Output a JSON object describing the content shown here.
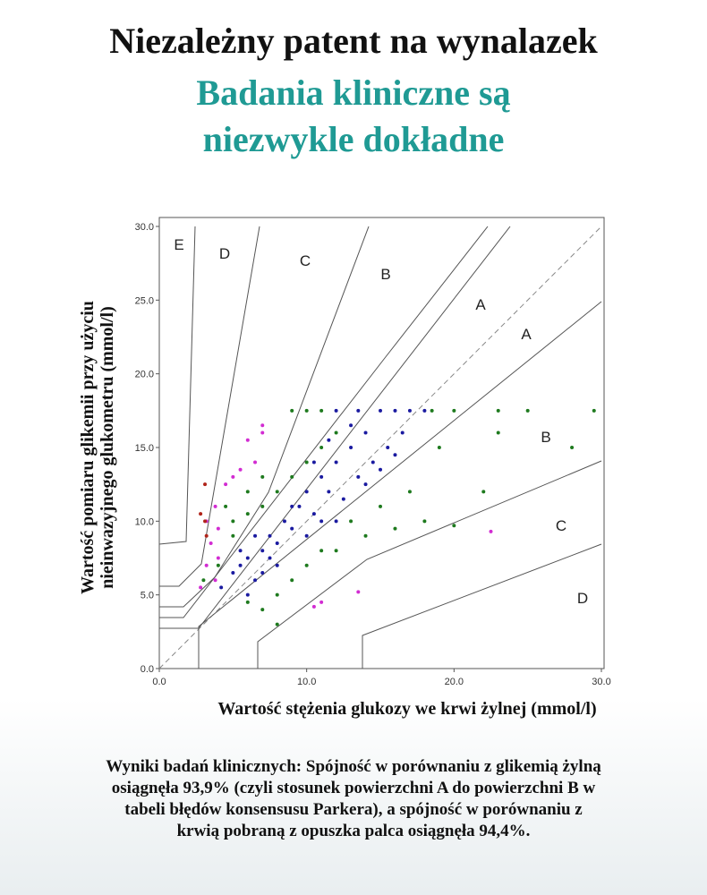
{
  "title": "Niezależny patent na wynalazek",
  "subtitle": "Badania kliniczne są niezwykle dokładne",
  "chart_data": {
    "type": "scatter",
    "x_label": "Wartość stężenia glukozy we krwi żylnej (mmol/l)",
    "y_label": [
      "Wartość pomiaru glikemii przy użyciu",
      "nieinwazyjnego glukometru (mmol/l)"
    ],
    "xlim": [
      0,
      30
    ],
    "ylim": [
      0,
      30
    ],
    "xticks": [
      {
        "value": 0,
        "label": "0.0"
      },
      {
        "value": 10,
        "label": "10.0"
      },
      {
        "value": 20,
        "label": "20.0"
      },
      {
        "value": 30,
        "label": "30.0"
      }
    ],
    "yticks": [
      {
        "value": 0,
        "label": "0.0"
      },
      {
        "value": 5,
        "label": "5.0"
      },
      {
        "value": 10,
        "label": "10.0"
      },
      {
        "value": 15,
        "label": "15.0"
      },
      {
        "value": 20,
        "label": "20.0"
      },
      {
        "value": 25,
        "label": "25.0"
      },
      {
        "value": 30,
        "label": "30.0"
      }
    ],
    "zone_labels": [
      "E",
      "D",
      "C",
      "B",
      "A",
      "A",
      "B",
      "C",
      "D"
    ],
    "series": [
      {
        "color": "#1e7a1e",
        "x": [
          3,
          4,
          5,
          6,
          7,
          8,
          9,
          10,
          11,
          12,
          9,
          10,
          11,
          5,
          4.5,
          6,
          7,
          8,
          9,
          10,
          12,
          14,
          16,
          18,
          20,
          22,
          23,
          25,
          28,
          29.5,
          23,
          19,
          17,
          15,
          13,
          7,
          8,
          6,
          11,
          20,
          18.5
        ],
        "y": [
          6,
          7,
          9,
          10.5,
          11,
          12,
          13,
          14,
          15,
          16,
          17.5,
          17.5,
          17.5,
          10,
          11,
          12,
          13,
          5,
          6,
          7,
          8,
          9,
          9.5,
          10,
          9.7,
          12,
          16,
          17.5,
          15,
          17.5,
          17.5,
          15,
          12,
          11,
          10,
          4,
          3,
          4.5,
          8,
          17.5,
          17.5
        ]
      },
      {
        "color": "#1a1aa0",
        "x": [
          4.2,
          5,
          5.5,
          6,
          6.5,
          7,
          7.5,
          8,
          8.5,
          9,
          9.5,
          10,
          10.5,
          11,
          11.5,
          12,
          12.5,
          13,
          13.5,
          14,
          14.5,
          15,
          15.5,
          16,
          16.5,
          17,
          12,
          13,
          6,
          7,
          8,
          9,
          10,
          11,
          12,
          5.5,
          6.5,
          7.5,
          14,
          15,
          16,
          18,
          13.5,
          11.5,
          10.5
        ],
        "y": [
          5.5,
          6.5,
          7,
          7.5,
          6,
          8,
          9,
          8.5,
          10,
          9.5,
          11,
          12,
          10.5,
          13,
          12,
          14,
          11.5,
          15,
          13,
          16,
          14,
          17.5,
          15,
          17.5,
          16,
          17.5,
          17.5,
          16.5,
          5,
          6.5,
          7,
          11,
          9,
          10,
          10,
          8,
          9,
          7.5,
          12.5,
          13.5,
          14.5,
          17.5,
          17.5,
          15.5,
          14
        ]
      },
      {
        "color": "#d22cd2",
        "x": [
          2.8,
          3.2,
          3.5,
          4,
          3.8,
          4.5,
          5.5,
          6,
          7,
          6.5,
          3.2,
          4,
          3.8,
          5,
          10.5,
          11,
          13.5,
          22.5,
          7
        ],
        "y": [
          5.5,
          7,
          8.5,
          9.5,
          11,
          12.5,
          13.5,
          15.5,
          16,
          14,
          10,
          7.5,
          6,
          13,
          4.2,
          4.5,
          5.2,
          9.3,
          16.5
        ]
      },
      {
        "color": "#b0241a",
        "x": [
          3.1,
          3.1,
          3.2,
          2.8
        ],
        "y": [
          10,
          12.5,
          9,
          10.5
        ]
      }
    ]
  },
  "caption": [
    "Wyniki badań klinicznych: Spójność w porównaniu z glikemią żylną",
    "osiągnęła 93,9% (czyli stosunek powierzchni A do powierzchni B w",
    "tabeli błędów konsensusu Parkera), a spójność w porównaniu z",
    "krwią pobraną z opuszka palca osiągnęła 94,4%."
  ]
}
